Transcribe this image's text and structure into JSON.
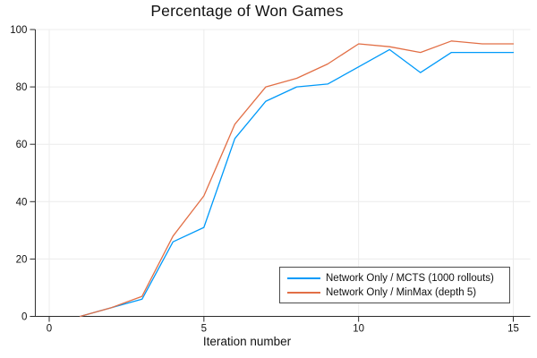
{
  "chart_data": {
    "type": "line",
    "title": "Percentage of Won Games",
    "xlabel": "Iteration number",
    "ylabel": "",
    "x": [
      1,
      2,
      3,
      4,
      5,
      6,
      7,
      8,
      9,
      10,
      11,
      12,
      13,
      14,
      15
    ],
    "series": [
      {
        "name": "Network Only / MCTS (1000 rollouts)",
        "color": "#009af9",
        "values": [
          0,
          3,
          6,
          26,
          31,
          62,
          75,
          80,
          81,
          87,
          93,
          85,
          92,
          92,
          92
        ]
      },
      {
        "name": "Network Only / MinMax (depth 5)",
        "color": "#e26f46",
        "values": [
          0,
          3,
          7,
          28,
          42,
          67,
          80,
          83,
          88,
          95,
          94,
          92,
          96,
          95,
          95
        ]
      }
    ],
    "xticks": [
      0,
      5,
      10,
      15
    ],
    "yticks": [
      0,
      20,
      40,
      60,
      80,
      100
    ],
    "xlim": [
      -0.45,
      15.55
    ],
    "ylim": [
      0,
      100
    ],
    "grid": true,
    "legend_position": "bottom-right"
  },
  "colors": {
    "background": "#ffffff",
    "axis": "#2b2b2b",
    "grid": "#ececec",
    "tick_text": "#111111",
    "legend_border": "#4d4d4d"
  }
}
